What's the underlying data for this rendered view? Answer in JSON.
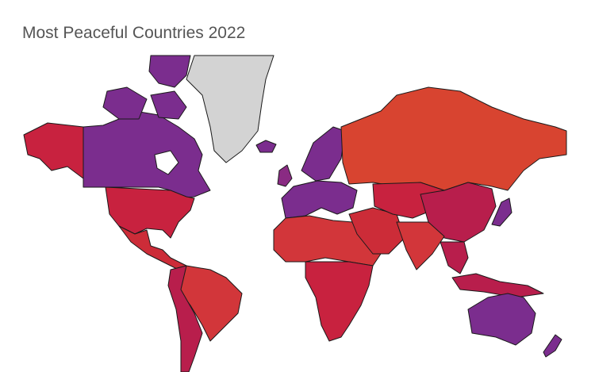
{
  "title": "Most Peaceful Countries 2022"
}
